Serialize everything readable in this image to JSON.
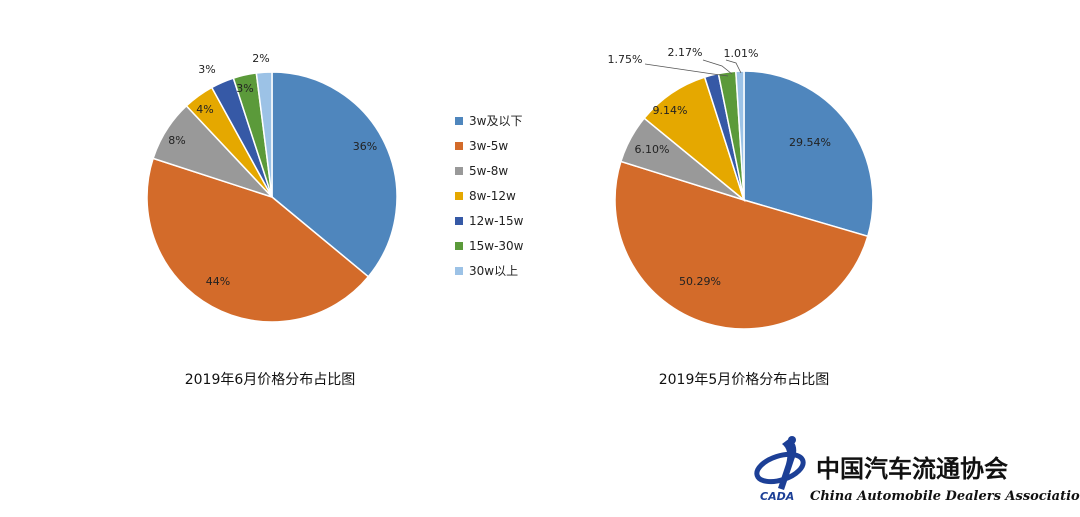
{
  "colors": {
    "categories": [
      "#4f86bd",
      "#d36b2a",
      "#999999",
      "#e5a800",
      "#3659a6",
      "#5b9a3a",
      "#9cc2e6"
    ]
  },
  "legend": {
    "items": [
      "3w及以下",
      "3w-5w",
      "5w-8w",
      "8w-12w",
      "12w-15w",
      "15w-30w",
      "30w以上"
    ]
  },
  "chart_data": [
    {
      "type": "pie",
      "title": "2019年6月价格分布占比图",
      "categories": [
        "3w及以下",
        "3w-5w",
        "5w-8w",
        "8w-12w",
        "12w-15w",
        "15w-30w",
        "30w以上"
      ],
      "values": [
        36,
        44,
        8,
        4,
        3,
        3,
        2
      ],
      "labels": [
        "36%",
        "44%",
        "8%",
        "4%",
        "3%",
        "3%",
        "2%"
      ]
    },
    {
      "type": "pie",
      "title": "2019年5月价格分布占比图",
      "categories": [
        "3w及以下",
        "3w-5w",
        "5w-8w",
        "8w-12w",
        "12w-15w",
        "15w-30w",
        "30w以上"
      ],
      "values": [
        29.54,
        50.29,
        6.1,
        9.14,
        1.75,
        2.17,
        1.01
      ],
      "labels": [
        "29.54%",
        "50.29%",
        "6.10%",
        "9.14%",
        "1.75%",
        "2.17%",
        "1.01%"
      ]
    }
  ],
  "org": {
    "name_cn": "中国汽车流通协会",
    "name_en": "China Automobile Dealers Association",
    "abbr": "CADA"
  }
}
